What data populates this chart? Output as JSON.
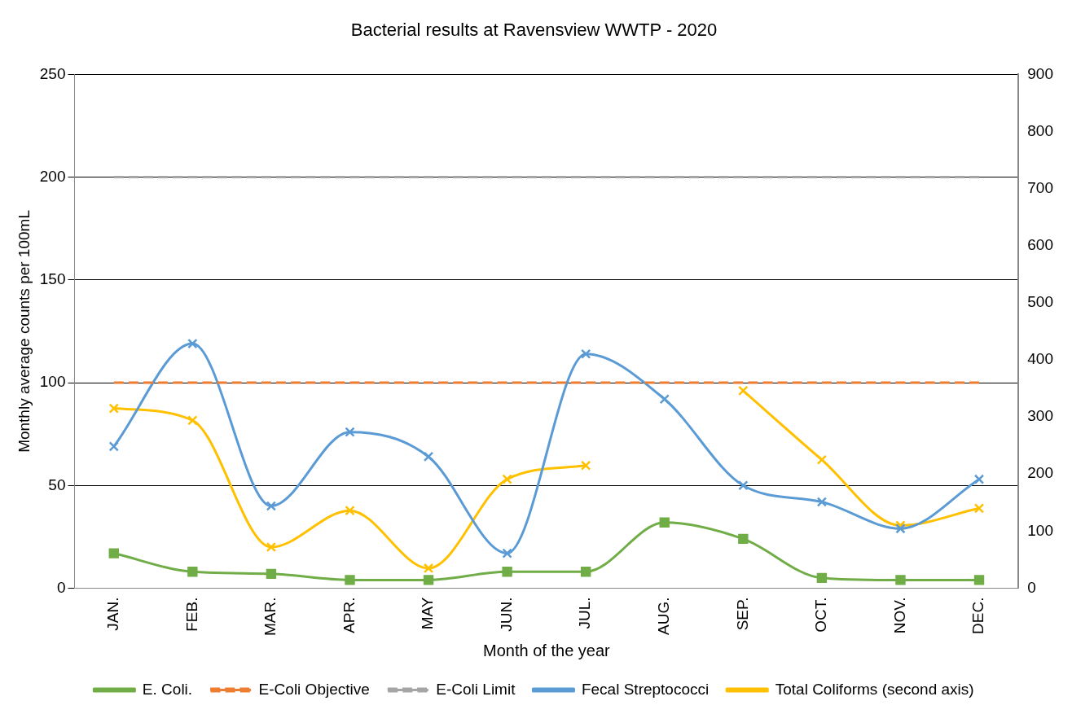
{
  "chart_data": {
    "type": "line",
    "title": "Bacterial results at Ravensview WWTP - 2020",
    "xlabel": "Month of the year",
    "ylabel": "Monthly average counts per 100mL",
    "categories": [
      "JAN.",
      "FEB.",
      "MAR.",
      "APR.",
      "MAY",
      "JUN.",
      "JUL.",
      "AUG.",
      "SEP.",
      "OCT.",
      "NOV.",
      "DEC."
    ],
    "ylim": [
      0,
      250
    ],
    "yticks": [
      0,
      50,
      100,
      150,
      200,
      250
    ],
    "y2lim": [
      0,
      900
    ],
    "y2ticks": [
      0,
      100,
      200,
      300,
      400,
      500,
      600,
      700,
      800,
      900
    ],
    "grid": "y",
    "legend": "bottom",
    "series": [
      {
        "name": "E. Coli.",
        "color": "#70ad47",
        "marker": "square",
        "values": [
          17,
          8,
          7,
          4,
          4,
          8,
          8,
          32,
          24,
          5,
          4,
          4
        ]
      },
      {
        "name": "E-Coli Objective",
        "color": "#ed7d31",
        "marker": "none",
        "line_style": "dashed",
        "values": [
          100,
          100,
          100,
          100,
          100,
          100,
          100,
          100,
          100,
          100,
          100,
          100
        ]
      },
      {
        "name": "E-Coli Limit",
        "color": "#a5a5a5",
        "marker": "none",
        "line_style": "dashed",
        "values": [
          200,
          200,
          200,
          200,
          200,
          200,
          200,
          200,
          200,
          200,
          200,
          200
        ]
      },
      {
        "name": "Fecal Streptococci",
        "color": "#5b9bd5",
        "marker": "cross",
        "values": [
          69,
          119,
          40,
          76,
          64,
          17,
          114,
          92,
          50,
          42,
          29,
          53
        ]
      },
      {
        "name": "Total Coliforms (second axis)",
        "color": "#ffc000",
        "marker": "cross",
        "axis": "y2",
        "values": [
          315,
          294,
          72,
          136,
          35,
          191,
          215,
          null,
          346,
          225,
          110,
          140
        ]
      }
    ]
  }
}
